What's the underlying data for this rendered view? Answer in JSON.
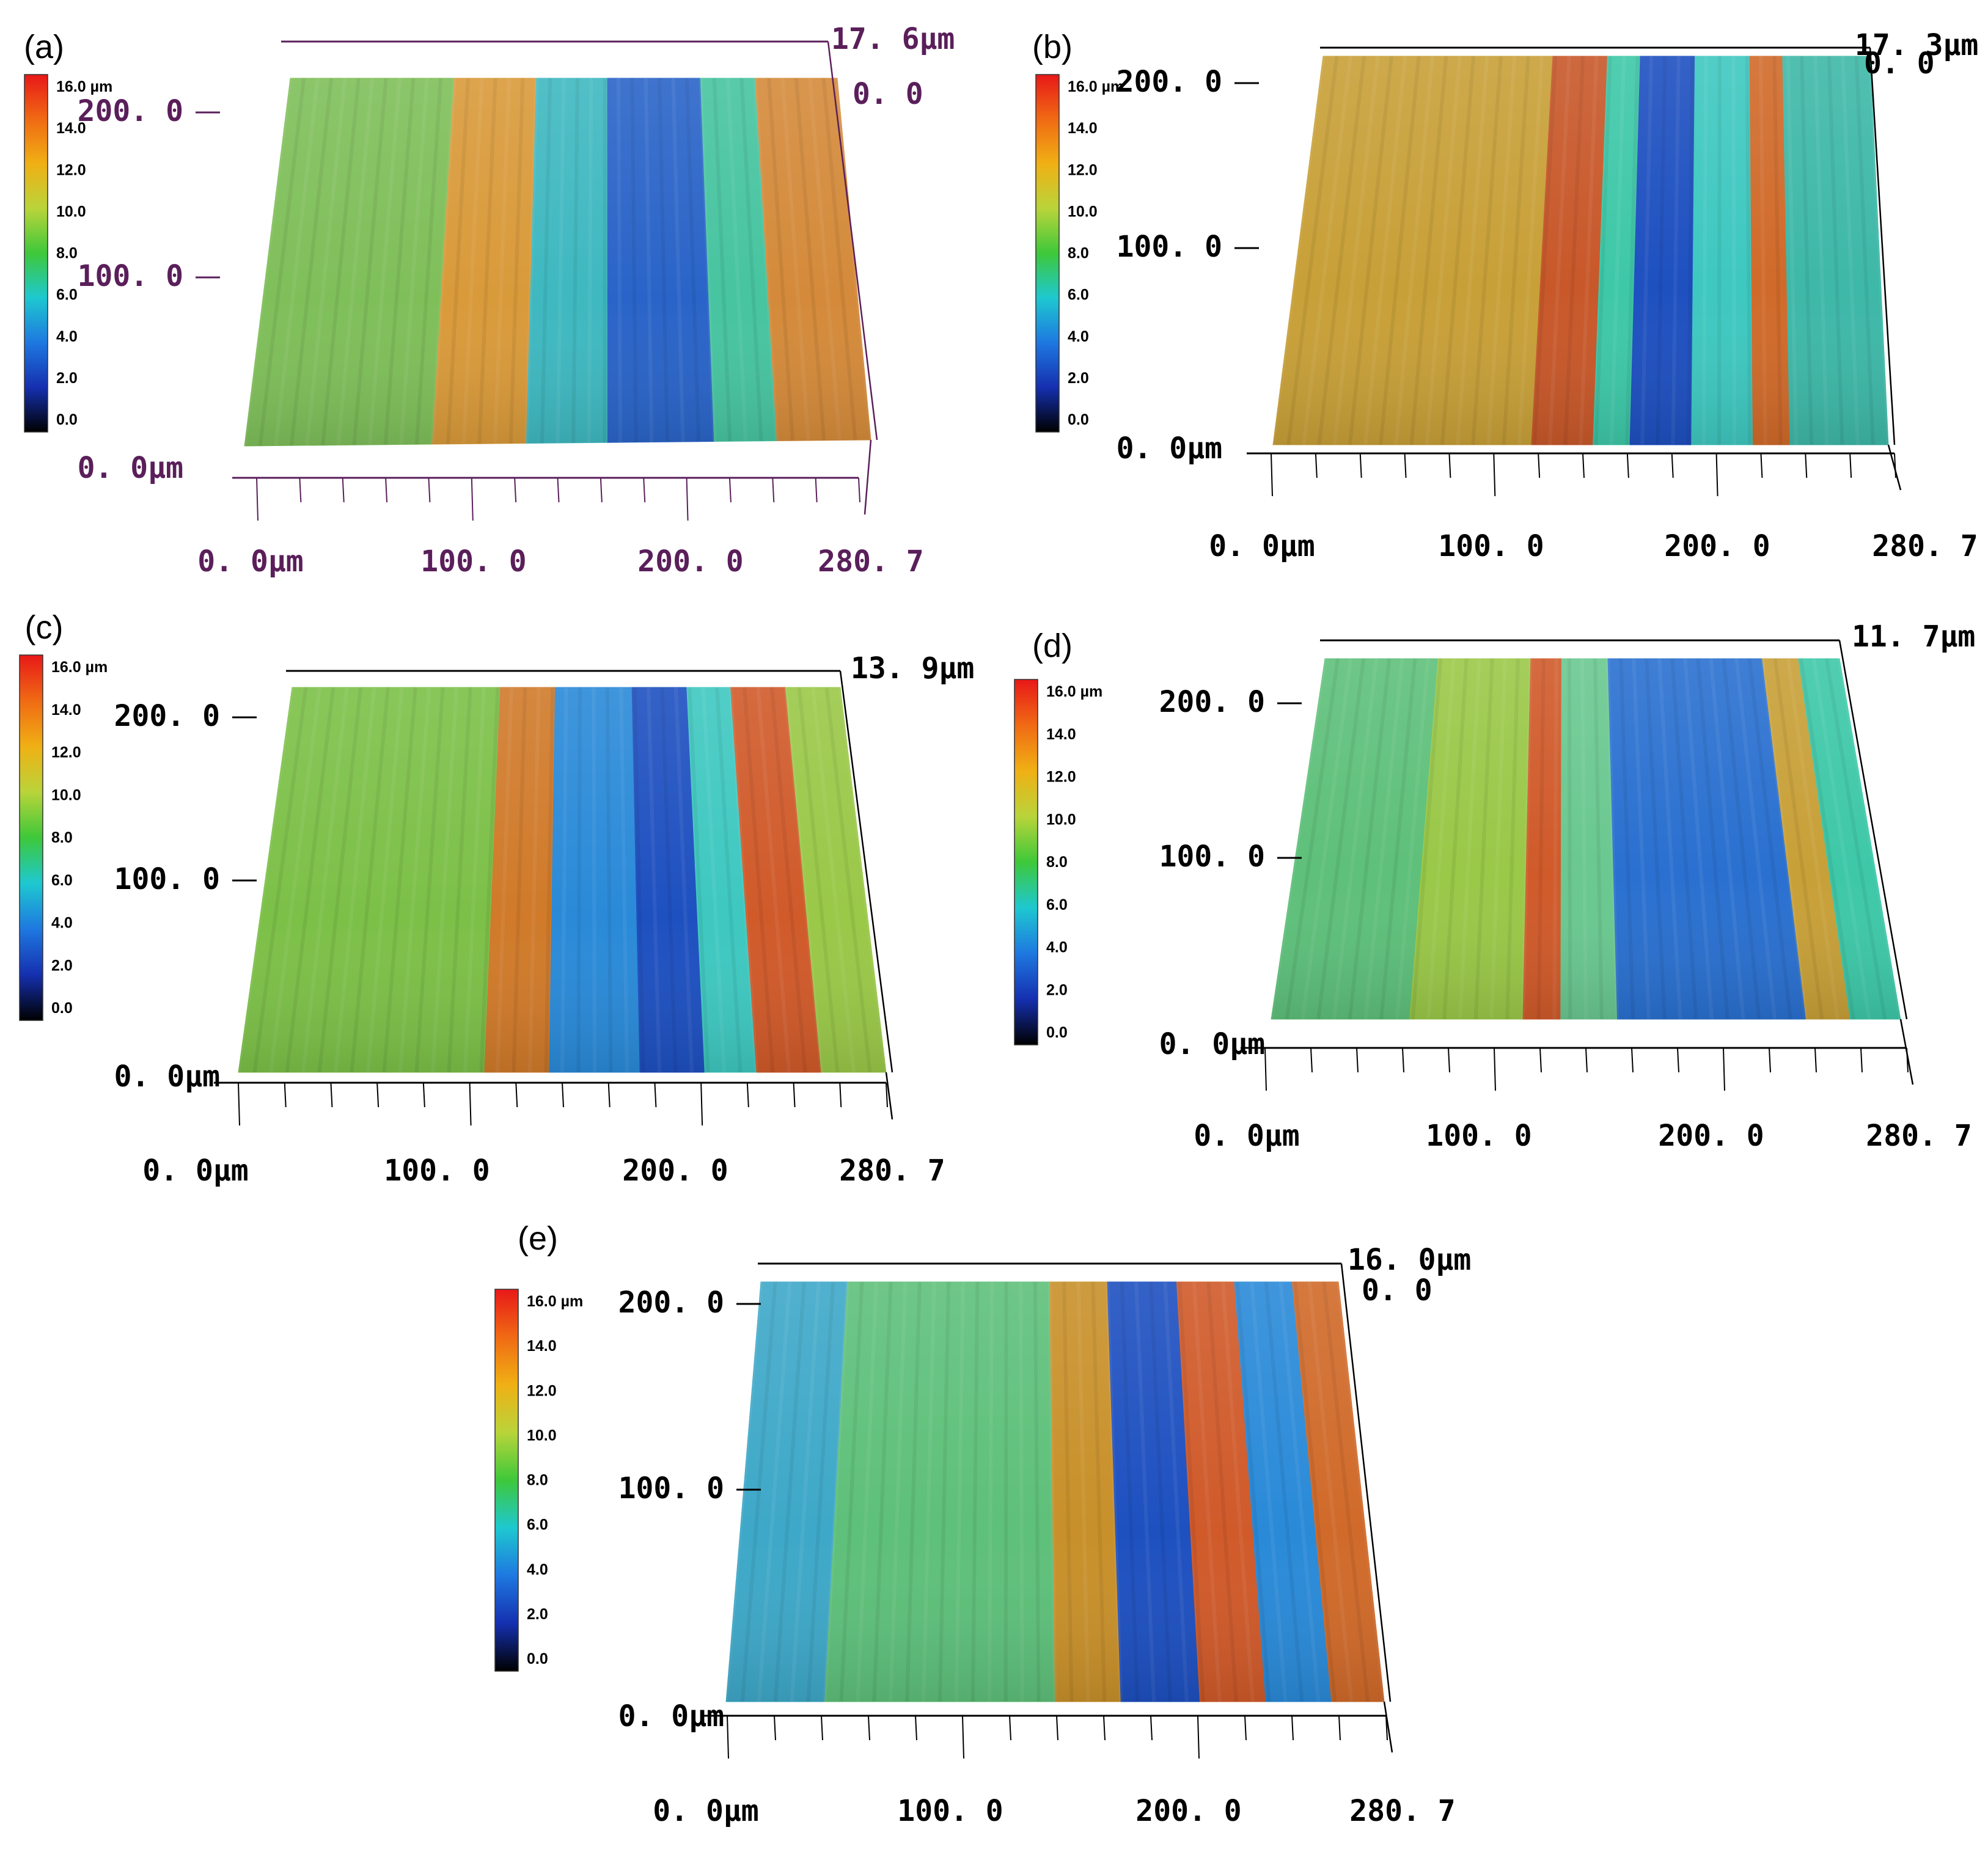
{
  "figure": {
    "colors": {
      "purple_axes": "#5a1f5a",
      "black_axes": "#000000",
      "colormap": [
        "#000000",
        "#1530b0",
        "#1e78e0",
        "#1ec8d0",
        "#3ec83a",
        "#b9d43a",
        "#f0b014",
        "#f06a14",
        "#e81818"
      ]
    },
    "colorbar": {
      "ticks": [
        "16.0 µm",
        "14.0",
        "12.0",
        "10.0",
        "8.0",
        "6.0",
        "4.0",
        "2.0",
        "0.0"
      ]
    },
    "panels": [
      {
        "label": "(a)",
        "axis_color": "purple",
        "z_max_label": "17. 6µm",
        "z_zero_label": "0. 0",
        "y_labels": [
          "200. 0",
          "100. 0",
          "0. 0µm"
        ],
        "x_labels": [
          "0. 0µm",
          "100. 0",
          "200. 0",
          "280. 7"
        ],
        "stripes": [
          {
            "from": 0.0,
            "to": 0.3,
            "color": "#7fbf5a"
          },
          {
            "from": 0.3,
            "to": 0.45,
            "color": "#d99a3a"
          },
          {
            "from": 0.45,
            "to": 0.58,
            "color": "#3fb8c0"
          },
          {
            "from": 0.58,
            "to": 0.75,
            "color": "#2a64c8"
          },
          {
            "from": 0.75,
            "to": 0.85,
            "color": "#47c4a0"
          },
          {
            "from": 0.85,
            "to": 1.0,
            "color": "#d48a3a"
          }
        ]
      },
      {
        "label": "(b)",
        "axis_color": "black",
        "z_max_label": "17. 3µm",
        "z_zero_label": "0. 0",
        "y_labels": [
          "200. 0",
          "100. 0",
          "0. 0µm"
        ],
        "x_labels": [
          "0. 0µm",
          "100. 0",
          "200. 0",
          "280. 7"
        ],
        "stripes": [
          {
            "from": 0.0,
            "to": 0.42,
            "color": "#c8a038"
          },
          {
            "from": 0.42,
            "to": 0.52,
            "color": "#c8582a"
          },
          {
            "from": 0.52,
            "to": 0.58,
            "color": "#3ec8a8"
          },
          {
            "from": 0.58,
            "to": 0.68,
            "color": "#1e50c0"
          },
          {
            "from": 0.68,
            "to": 0.78,
            "color": "#3ec8c0"
          },
          {
            "from": 0.78,
            "to": 0.84,
            "color": "#d06a2a"
          },
          {
            "from": 0.84,
            "to": 1.0,
            "color": "#3eb8a8"
          }
        ]
      },
      {
        "label": "(c)",
        "axis_color": "black",
        "z_max_label": "13. 9µm",
        "z_zero_label": "",
        "y_labels": [
          "200. 0",
          "100. 0",
          "0. 0µm"
        ],
        "x_labels": [
          "0. 0µm",
          "100. 0",
          "200. 0",
          "280. 7"
        ],
        "stripes": [
          {
            "from": 0.0,
            "to": 0.38,
            "color": "#7cc048"
          },
          {
            "from": 0.38,
            "to": 0.48,
            "color": "#d07a2a"
          },
          {
            "from": 0.48,
            "to": 0.62,
            "color": "#2a8ad8"
          },
          {
            "from": 0.62,
            "to": 0.72,
            "color": "#1e50c0"
          },
          {
            "from": 0.72,
            "to": 0.8,
            "color": "#3ec8c0"
          },
          {
            "from": 0.8,
            "to": 0.9,
            "color": "#d05a2a"
          },
          {
            "from": 0.9,
            "to": 1.0,
            "color": "#9ac848"
          }
        ]
      },
      {
        "label": "(d)",
        "axis_color": "black",
        "z_max_label": "11. 7µm",
        "z_zero_label": "",
        "y_labels": [
          "200. 0",
          "100. 0",
          "0. 0µm"
        ],
        "x_labels": [
          "0. 0µm",
          "100. 0",
          "200. 0",
          "280. 7"
        ],
        "stripes": [
          {
            "from": 0.0,
            "to": 0.22,
            "color": "#5ec07a"
          },
          {
            "from": 0.22,
            "to": 0.4,
            "color": "#9ac848"
          },
          {
            "from": 0.4,
            "to": 0.46,
            "color": "#d05a2a"
          },
          {
            "from": 0.46,
            "to": 0.55,
            "color": "#6ac890"
          },
          {
            "from": 0.55,
            "to": 0.85,
            "color": "#2a70d0"
          },
          {
            "from": 0.85,
            "to": 0.92,
            "color": "#c8a038"
          },
          {
            "from": 0.92,
            "to": 1.0,
            "color": "#3ec8a8"
          }
        ]
      },
      {
        "label": "(e)",
        "axis_color": "black",
        "z_max_label": "16. 0µm",
        "z_zero_label": "0. 0",
        "y_labels": [
          "200. 0",
          "100. 0",
          "0. 0µm"
        ],
        "x_labels": [
          "0. 0µm",
          "100. 0",
          "200. 0",
          "280. 7"
        ],
        "stripes": [
          {
            "from": 0.0,
            "to": 0.15,
            "color": "#3ea8c8"
          },
          {
            "from": 0.15,
            "to": 0.5,
            "color": "#5ec07a"
          },
          {
            "from": 0.5,
            "to": 0.6,
            "color": "#c8902a"
          },
          {
            "from": 0.6,
            "to": 0.72,
            "color": "#1e50c0"
          },
          {
            "from": 0.72,
            "to": 0.82,
            "color": "#d05a2a"
          },
          {
            "from": 0.82,
            "to": 0.92,
            "color": "#2a8ad8"
          },
          {
            "from": 0.92,
            "to": 1.0,
            "color": "#d06a2a"
          }
        ]
      }
    ]
  }
}
